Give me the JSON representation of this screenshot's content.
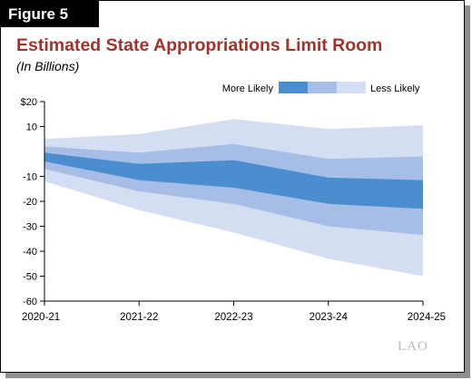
{
  "figure_label": "Figure 5",
  "watermark": "LAO",
  "chart_data": {
    "type": "area",
    "title": "Estimated State Appropriations Limit Room",
    "subtitle": "(In Billions)",
    "xlabel": "",
    "ylabel": "",
    "categories": [
      "2020-21",
      "2021-22",
      "2022-23",
      "2023-24",
      "2024-25"
    ],
    "ylim": [
      -60,
      20
    ],
    "yticks": [
      20,
      10,
      -10,
      -20,
      -30,
      -40,
      -50,
      -60
    ],
    "ytick_labels": [
      "$20",
      "10",
      "-10",
      "-20",
      "-30",
      "-40",
      "-50",
      "-60"
    ],
    "grid": false,
    "legend": {
      "placement": "top-right",
      "left_label": "More Likely",
      "right_label": "Less Likely"
    },
    "bands": [
      {
        "upper": [
          5,
          7,
          13,
          9,
          10.5
        ],
        "lower": [
          -12,
          -23.5,
          -32.5,
          -43,
          -50
        ],
        "color": "#d3def2"
      },
      {
        "upper": [
          2,
          -0.5,
          3,
          -3,
          -2
        ],
        "lower": [
          -7,
          -16,
          -21,
          -30,
          -33.5
        ],
        "color": "#a6bde5"
      },
      {
        "upper": [
          -0.5,
          -5,
          -3.5,
          -10.5,
          -11.5
        ],
        "lower": [
          -4,
          -11.5,
          -14.5,
          -21,
          -23
        ],
        "color": "#4b8ed0"
      }
    ]
  }
}
